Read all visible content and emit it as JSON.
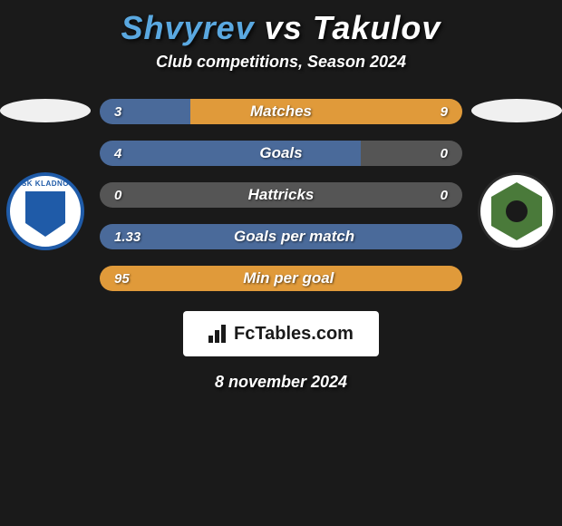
{
  "header": {
    "player1": "Shvyrev",
    "vs": "vs",
    "player2": "Takulov",
    "player1_color": "#5aa8e0",
    "player2_color": "#ffffff",
    "vs_color": "#ffffff",
    "subtitle": "Club competitions, Season 2024"
  },
  "colors": {
    "left_bar": "#4a6a9a",
    "right_bar": "#e09a3a",
    "neutral_bar": "#555555",
    "background": "#1a1a1a"
  },
  "stats": [
    {
      "label": "Matches",
      "left_val": "3",
      "right_val": "9",
      "left_pct": 25,
      "right_pct": 75
    },
    {
      "label": "Goals",
      "left_val": "4",
      "right_val": "0",
      "left_pct": 72,
      "right_pct": 28,
      "right_neutral": true
    },
    {
      "label": "Hattricks",
      "left_val": "0",
      "right_val": "0",
      "left_pct": 50,
      "right_pct": 50,
      "left_neutral": true,
      "right_neutral": true
    },
    {
      "label": "Goals per match",
      "left_val": "1.33",
      "right_val": "",
      "left_pct": 100,
      "right_pct": 0
    },
    {
      "label": "Min per goal",
      "left_val": "95",
      "right_val": "",
      "left_pct": 100,
      "right_pct": 0,
      "left_color_override": "#e09a3a"
    }
  ],
  "footer": {
    "brand": "FcTables.com",
    "date": "8 november 2024"
  },
  "clubs": {
    "left_name": "SK KLADNO"
  }
}
